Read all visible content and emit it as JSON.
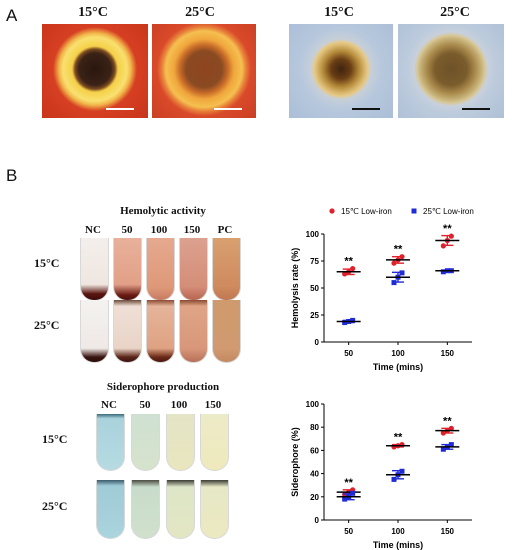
{
  "panel_a": {
    "label": "A",
    "plates": [
      {
        "temp": "15°C",
        "medium": "CAS agar",
        "halo_color": "#f5d048",
        "colony_color": "#3a2216",
        "bg": "#d63f22"
      },
      {
        "temp": "25°C",
        "medium": "CAS agar",
        "halo_color": "#f0a63c",
        "colony_color": "#8f4420",
        "bg": "#d94a2a"
      },
      {
        "temp": "15°C",
        "medium": "blood agar",
        "halo_color": "#d9b870",
        "colony_color": "#3e2410",
        "bg": "#b7c8dd"
      },
      {
        "temp": "25°C",
        "medium": "blood agar",
        "halo_color": "#c8b47a",
        "colony_color": "#6e5228",
        "bg": "#bccbdc"
      }
    ]
  },
  "panel_b": {
    "label": "B",
    "hemolytic": {
      "title": "Hemolytic activity",
      "columns": [
        "NC",
        "50",
        "100",
        "150",
        "PC"
      ],
      "rows": [
        "15°C",
        "25°C"
      ]
    },
    "siderophore": {
      "title": "Siderophore production",
      "columns": [
        "NC",
        "50",
        "100",
        "150"
      ],
      "rows": [
        "15°C",
        "25°C"
      ]
    }
  },
  "chart_data": [
    {
      "type": "scatter",
      "title": "",
      "xlabel": "Time (mins)",
      "ylabel": "Hemolysis rate (%)",
      "categories": [
        "50",
        "100",
        "150"
      ],
      "ylim": [
        0,
        100
      ],
      "yticks": [
        "0",
        "25",
        "50",
        "75",
        "100"
      ],
      "legend_position": "top",
      "series": [
        {
          "name": "15℃ Low-iron",
          "color": "#e0202a",
          "marker": "circle",
          "means": [
            65,
            76,
            94
          ],
          "points": [
            [
              63,
              65,
              68
            ],
            [
              73,
              76,
              79
            ],
            [
              89,
              94,
              98
            ]
          ]
        },
        {
          "name": "25℃ Low-iron",
          "color": "#1f2bd6",
          "marker": "square",
          "means": [
            19,
            60,
            66
          ],
          "points": [
            [
              18,
              19,
              20
            ],
            [
              55,
              60,
              64
            ],
            [
              65,
              66,
              66
            ]
          ]
        }
      ],
      "annotations": [
        "**",
        "**",
        "**"
      ]
    },
    {
      "type": "scatter",
      "title": "",
      "xlabel": "Time (mins)",
      "ylabel": "Siderophore (%)",
      "categories": [
        "50",
        "100",
        "150"
      ],
      "ylim": [
        0,
        100
      ],
      "yticks": [
        "0",
        "20",
        "40",
        "60",
        "80",
        "100"
      ],
      "series": [
        {
          "name": "15℃ Low-iron",
          "color": "#e0202a",
          "marker": "circle",
          "means": [
            24,
            64,
            77
          ],
          "points": [
            [
              22,
              24,
              26
            ],
            [
              63,
              64,
              65
            ],
            [
              75,
              77,
              79
            ]
          ]
        },
        {
          "name": "25℃ Low-iron",
          "color": "#1f2bd6",
          "marker": "square",
          "means": [
            20,
            39,
            63
          ],
          "points": [
            [
              18,
              20,
              23
            ],
            [
              35,
              39,
              42
            ],
            [
              61,
              63,
              65
            ]
          ]
        }
      ],
      "annotations": [
        "**",
        "**",
        "**"
      ]
    }
  ]
}
